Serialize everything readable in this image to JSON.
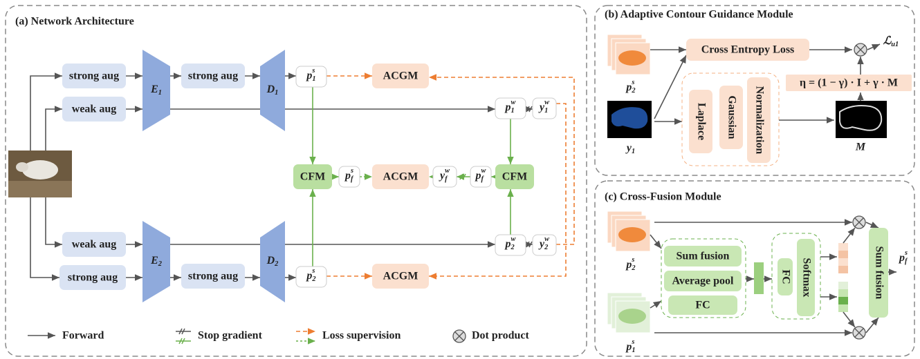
{
  "panel_a": {
    "title": "(a) Network Architecture",
    "strong_aug_1": "strong aug",
    "weak_aug_1": "weak aug",
    "encoder_1": {
      "base": "E",
      "sub": "1"
    },
    "strong_aug_2": "strong aug",
    "decoder_1": {
      "base": "D",
      "sub": "1"
    },
    "p1s": {
      "base": "p",
      "sub": "1",
      "sup": "s"
    },
    "acgm_1": "ACGM",
    "p1w": {
      "base": "p",
      "sub": "1",
      "sup": "w"
    },
    "y1w": {
      "base": "y",
      "sub": "1",
      "sup": "w"
    },
    "cfm_1": "CFM",
    "pfs": {
      "base": "p",
      "sub": "f",
      "sup": "s"
    },
    "acgm_2": "ACGM",
    "yfw": {
      "base": "y",
      "sub": "f",
      "sup": "w"
    },
    "pfw": {
      "base": "p",
      "sub": "f",
      "sup": "w"
    },
    "cfm_2": "CFM",
    "weak_aug_2": "weak aug",
    "strong_aug_3": "strong aug",
    "encoder_2": {
      "base": "E",
      "sub": "2"
    },
    "strong_aug_4": "strong aug",
    "decoder_2": {
      "base": "D",
      "sub": "2"
    },
    "p2w": {
      "base": "p",
      "sub": "2",
      "sup": "w"
    },
    "y2w": {
      "base": "y",
      "sub": "2",
      "sup": "w"
    },
    "p2s": {
      "base": "p",
      "sub": "2",
      "sup": "s"
    },
    "acgm_3": "ACGM",
    "legend": {
      "forward": "Forward",
      "stop_gradient": "Stop gradient",
      "loss_supervision": "Loss supervision",
      "dot_product": "Dot product"
    }
  },
  "panel_b": {
    "title": "(b) Adaptive Contour Guidance Module",
    "cross_entropy": "Cross Entropy Loss",
    "loss": {
      "base": "ℒ",
      "sub": "u1"
    },
    "p2s": {
      "base": "p",
      "sub": "2",
      "sup": "s"
    },
    "y1": {
      "base": "y",
      "sub": "1"
    },
    "laplace": "Laplace",
    "gaussian": "Gaussian",
    "normalization": "Normalization",
    "formula": "η = (1 − γ) · I + γ · M",
    "mask": "M"
  },
  "panel_c": {
    "title": "(c) Cross-Fusion Module",
    "sum_fusion_1": "Sum fusion",
    "average_pool": "Average pool",
    "fc_1": "FC",
    "fc_2": "FC",
    "softmax": "Softmax",
    "sum_fusion_2": "Sum fusion",
    "pfs": {
      "base": "p",
      "sub": "f",
      "sup": "s"
    },
    "p2s": {
      "base": "p",
      "sub": "2",
      "sup": "s"
    },
    "p1s": {
      "base": "p",
      "sub": "1",
      "sup": "s"
    }
  }
}
